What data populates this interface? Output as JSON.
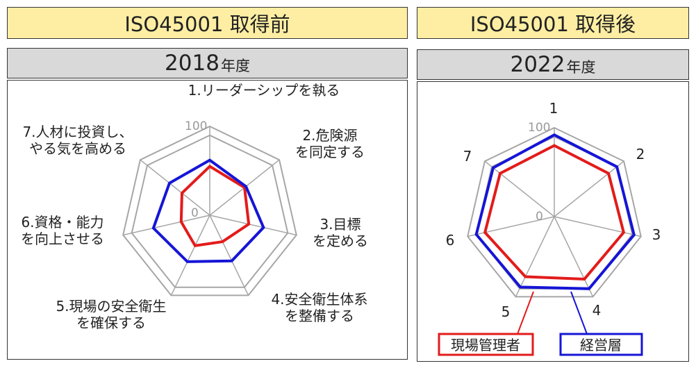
{
  "left": {
    "header": "ISO45001 取得前",
    "year": "2018",
    "year_suffix": "年度"
  },
  "right": {
    "header": "ISO45001 取得後",
    "year": "2022",
    "year_suffix": "年度"
  },
  "colors": {
    "manager": "#e31b1b",
    "executive": "#1515d6",
    "grid": "#a6a6a6"
  },
  "chart_data": [
    {
      "type": "radar",
      "title": "2018年度",
      "axes": [
        "1.リーダーシップを執る",
        "2.危険源を同定する",
        "3.目標を定める",
        "4.安全衛生体系を整備する",
        "5.現場の安全衛生を確保する",
        "6.資格・能力を向上させる",
        "7.人材に投資し、やる気を高める"
      ],
      "axis_label_lines": [
        [
          "1.リーダーシップを執る"
        ],
        [
          "2.危険源",
          "を同定する"
        ],
        [
          "3.目標",
          "を定める"
        ],
        [
          "4.安全衛生体系",
          "を整備する"
        ],
        [
          "5.現場の安全衛生",
          "を確保する"
        ],
        [
          "6.資格・能力",
          "を向上させる"
        ],
        [
          "7.人材に投資し、",
          "やる気を高める"
        ]
      ],
      "range": [
        0,
        100
      ],
      "tick_labels": [
        "0",
        "100"
      ],
      "series": [
        {
          "name": "現場管理者",
          "values": [
            55,
            50,
            45,
            33,
            38,
            33,
            40
          ]
        },
        {
          "name": "経営層",
          "values": [
            62,
            52,
            62,
            57,
            58,
            65,
            58
          ]
        }
      ]
    },
    {
      "type": "radar",
      "title": "2022年度",
      "axes": [
        "1",
        "2",
        "3",
        "4",
        "5",
        "6",
        "7"
      ],
      "axis_label_lines": [
        [
          "1"
        ],
        [
          "2"
        ],
        [
          "3"
        ],
        [
          "4"
        ],
        [
          "5"
        ],
        [
          "6"
        ],
        [
          "7"
        ]
      ],
      "range": [
        0,
        100
      ],
      "tick_labels": [
        "0",
        "100"
      ],
      "series": [
        {
          "name": "現場管理者",
          "values": [
            80,
            78,
            80,
            78,
            75,
            80,
            78
          ]
        },
        {
          "name": "経営層",
          "values": [
            92,
            90,
            92,
            90,
            88,
            90,
            88
          ]
        }
      ]
    }
  ],
  "legend": {
    "manager": "現場管理者",
    "executive": "経営層"
  }
}
